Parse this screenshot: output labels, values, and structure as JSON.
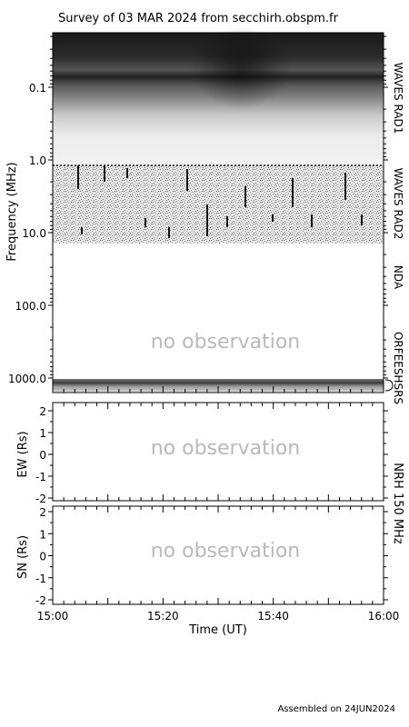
{
  "title": "Survey of 03 MAR 2024 from secchirh.obspm.fr",
  "footer": "Assembled on 24JUN2024",
  "chart_data": [
    {
      "type": "heatmap",
      "ylabel": "Frequency (MHz)",
      "y_scale": "log",
      "y_reversed": true,
      "ylim": [
        0.02,
        1500.0
      ],
      "yticks": [
        "0.1",
        "1.0",
        "10.0",
        "100.0",
        "1000.0"
      ],
      "yticks_values": [
        0.1,
        1.0,
        10.0,
        100.0,
        1000.0
      ],
      "bands": [
        {
          "name": "WAVES RAD1",
          "from": 0.02,
          "to": 1.0
        },
        {
          "name": "WAVES RAD2",
          "from": 1.0,
          "to": 13.0
        },
        {
          "name": "NDA",
          "from": 13.0,
          "to": 150.0
        },
        {
          "name": "ORFEES",
          "from": 150.0,
          "to": 1000.0
        },
        {
          "name": "HSRS",
          "from": 1000.0,
          "to": 1500.0
        }
      ],
      "annotation": "no observation"
    },
    {
      "type": "scatter",
      "ylabel": "EW (Rs)",
      "ylim": [
        -2,
        2
      ],
      "yticks": [
        "-2",
        "-1",
        "0",
        "1",
        "2"
      ],
      "annotation": "no observation",
      "values": []
    },
    {
      "type": "scatter",
      "ylabel": "SN (Rs)",
      "ylim": [
        -2,
        2
      ],
      "yticks": [
        "-2",
        "-1",
        "0",
        "1",
        "2"
      ],
      "annotation": "no observation",
      "values": []
    }
  ],
  "nrh_label": "NRH 150 MHz",
  "x_axis": {
    "label": "Time (UT)",
    "range": [
      "15:00",
      "16:00"
    ],
    "ticks": [
      "15:00",
      "15:20",
      "15:40",
      "16:00"
    ]
  },
  "colors": {
    "no_observation": "#b9b9b9",
    "axis": "#000000"
  }
}
